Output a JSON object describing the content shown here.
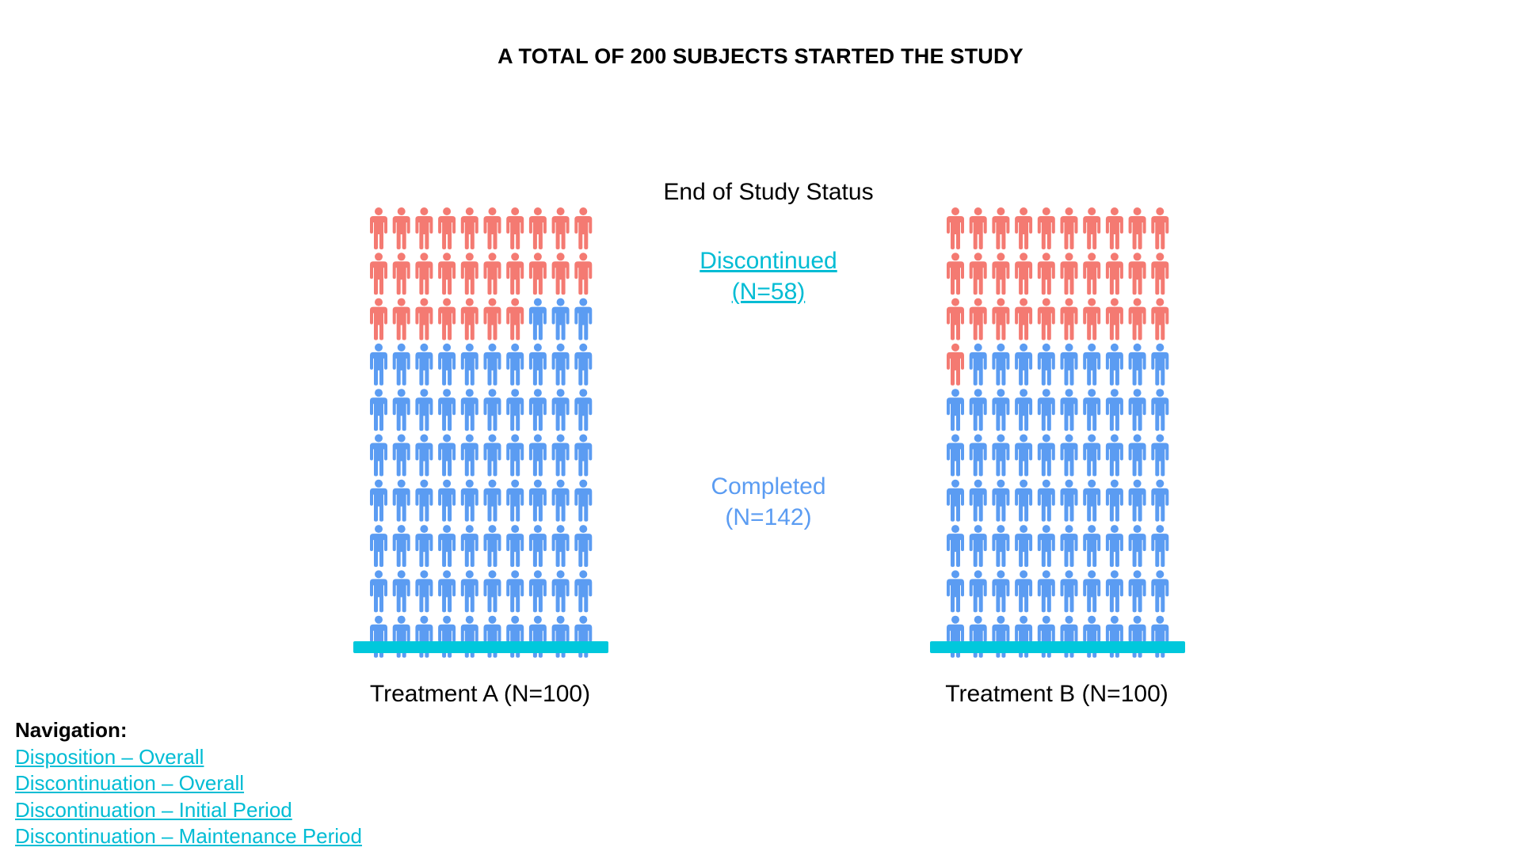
{
  "title": "A TOTAL OF 200 SUBJECTS STARTED THE STUDY",
  "status_heading": "End of Study Status",
  "legend": {
    "discontinued": {
      "line1": "Discontinued",
      "line2": "(N=58)"
    },
    "completed": {
      "line1": "Completed",
      "line2": "(N=142)"
    }
  },
  "colors": {
    "discontinued": "#F47A72",
    "completed": "#5B9CF2",
    "base_bar": "#00C8DC",
    "link": "#00BCD4"
  },
  "icon": "person-icon",
  "chart_data": {
    "type": "pictogram",
    "title": "A TOTAL OF 200 SUBJECTS STARTED THE STUDY",
    "icons_per_row": 10,
    "rows": 10,
    "categories": [
      "Treatment A (N=100)",
      "Treatment B (N=100)"
    ],
    "series": [
      {
        "name": "Discontinued",
        "values": [
          27,
          31
        ]
      },
      {
        "name": "Completed",
        "values": [
          73,
          69
        ]
      }
    ]
  },
  "navigation": {
    "heading": "Navigation:",
    "links": [
      "Disposition – Overall",
      "Discontinuation – Overall",
      "Discontinuation – Initial Period",
      "Discontinuation – Maintenance Period"
    ]
  }
}
